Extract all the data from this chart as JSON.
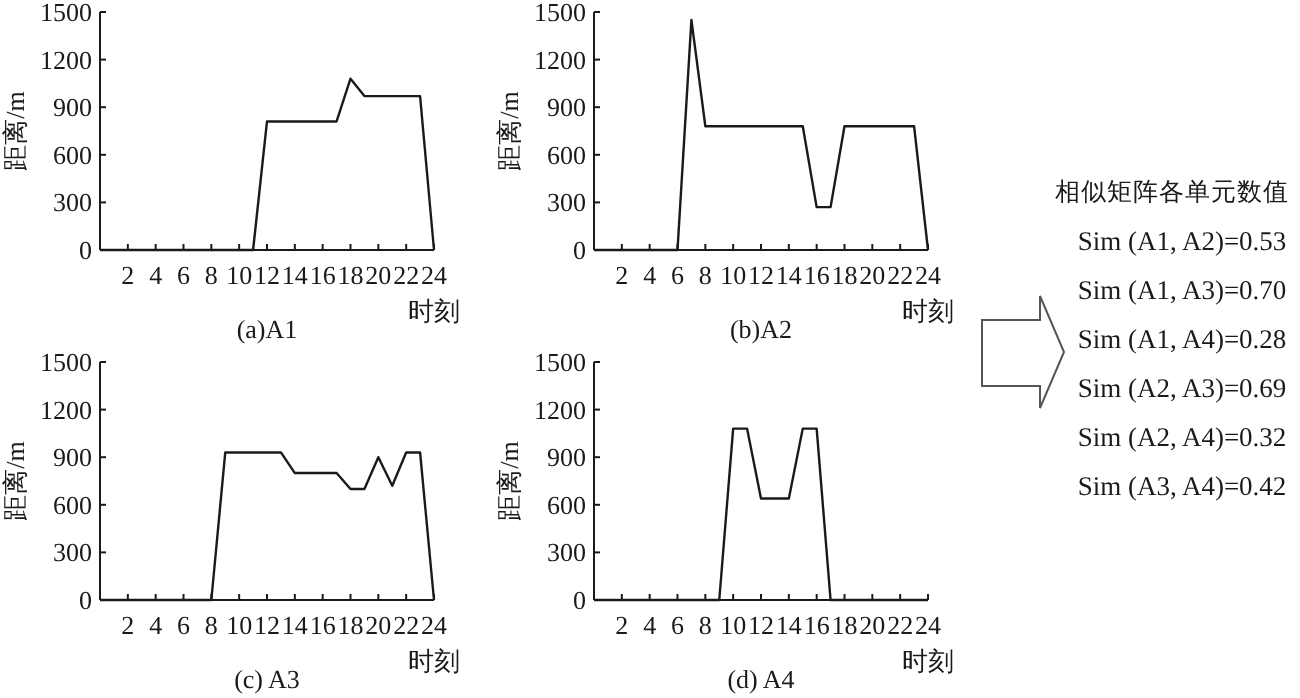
{
  "chart_data": [
    {
      "type": "line",
      "title": "(a)A1",
      "xlabel": "时刻",
      "ylabel": "距离/m",
      "color": "#1a1a1a",
      "x": [
        0,
        11,
        12,
        17,
        18,
        19,
        23,
        24
      ],
      "values": [
        0,
        0,
        810,
        810,
        1080,
        970,
        970,
        0
      ],
      "xlim": [
        0,
        24
      ],
      "xticks": [
        2,
        4,
        6,
        8,
        10,
        12,
        14,
        16,
        18,
        20,
        22,
        24
      ],
      "ylim": [
        0,
        1500
      ],
      "yticks": [
        0,
        300,
        600,
        900,
        1200,
        1500
      ]
    },
    {
      "type": "line",
      "title": "(b)A2",
      "xlabel": "时刻",
      "ylabel": "距离/m",
      "color": "#1a1a1a",
      "x": [
        0,
        6,
        7,
        8,
        15,
        16,
        17,
        18,
        23,
        24
      ],
      "values": [
        0,
        0,
        1450,
        780,
        780,
        270,
        270,
        780,
        780,
        0
      ],
      "xlim": [
        0,
        24
      ],
      "xticks": [
        2,
        4,
        6,
        8,
        10,
        12,
        14,
        16,
        18,
        20,
        22,
        24
      ],
      "ylim": [
        0,
        1500
      ],
      "yticks": [
        0,
        300,
        600,
        900,
        1200,
        1500
      ]
    },
    {
      "type": "line",
      "title": "(c) A3",
      "xlabel": "时刻",
      "ylabel": "距离/m",
      "color": "#1a1a1a",
      "x": [
        0,
        8,
        9,
        13,
        14,
        17,
        18,
        19,
        20,
        21,
        22,
        23,
        24
      ],
      "values": [
        0,
        0,
        930,
        930,
        800,
        800,
        700,
        700,
        900,
        720,
        930,
        930,
        0
      ],
      "xlim": [
        0,
        24
      ],
      "xticks": [
        2,
        4,
        6,
        8,
        10,
        12,
        14,
        16,
        18,
        20,
        22,
        24
      ],
      "ylim": [
        0,
        1500
      ],
      "yticks": [
        0,
        300,
        600,
        900,
        1200,
        1500
      ]
    },
    {
      "type": "line",
      "title": "(d) A4",
      "xlabel": "时刻",
      "ylabel": "距离/m",
      "color": "#1a1a1a",
      "x": [
        0,
        9,
        10,
        11,
        12,
        14,
        15,
        16,
        17,
        24
      ],
      "values": [
        0,
        0,
        1080,
        1080,
        640,
        640,
        1080,
        1080,
        0,
        0
      ],
      "xlim": [
        0,
        24
      ],
      "xticks": [
        2,
        4,
        6,
        8,
        10,
        12,
        14,
        16,
        18,
        20,
        22,
        24
      ],
      "ylim": [
        0,
        1500
      ],
      "yticks": [
        0,
        300,
        600,
        900,
        1200,
        1500
      ]
    },
    {
      "type": "other",
      "title": "相似矩阵各单元数值",
      "annotations": [
        "Sim (A1, A2)=0.53",
        "Sim (A1, A3)=0.70",
        "Sim (A1, A4)=0.28",
        "Sim (A2, A3)=0.69",
        "Sim (A2, A4)=0.32",
        "Sim (A3, A4)=0.42"
      ]
    }
  ]
}
